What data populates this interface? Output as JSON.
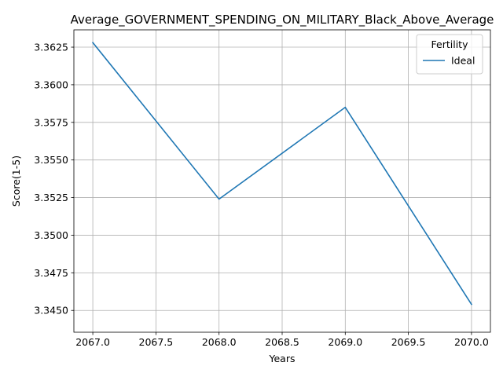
{
  "chart_data": {
    "type": "line",
    "title": "Average_GOVERNMENT_SPENDING_ON_MILITARY_Black_Above_Average",
    "xlabel": "Years",
    "ylabel": "Score(1-5)",
    "x": [
      2067,
      2068,
      2069,
      2070
    ],
    "xlim": [
      2066.85,
      2070.15
    ],
    "ylim": [
      3.34355,
      3.36365
    ],
    "xticks": [
      2067.0,
      2067.5,
      2068.0,
      2068.5,
      2069.0,
      2069.5,
      2070.0
    ],
    "xtick_labels": [
      "2067.0",
      "2067.5",
      "2068.0",
      "2068.5",
      "2069.0",
      "2069.5",
      "2070.0"
    ],
    "yticks": [
      3.345,
      3.3475,
      3.35,
      3.3525,
      3.355,
      3.3575,
      3.36,
      3.3625
    ],
    "ytick_labels": [
      "3.3450",
      "3.3475",
      "3.3500",
      "3.3525",
      "3.3550",
      "3.3575",
      "3.3600",
      "3.3625"
    ],
    "grid": true,
    "legend": {
      "title": "Fertility",
      "placement": "top-right"
    },
    "series": [
      {
        "name": "Ideal",
        "color": "#1f77b4",
        "values": [
          3.3628,
          3.3524,
          3.3585,
          3.3454
        ]
      }
    ]
  }
}
